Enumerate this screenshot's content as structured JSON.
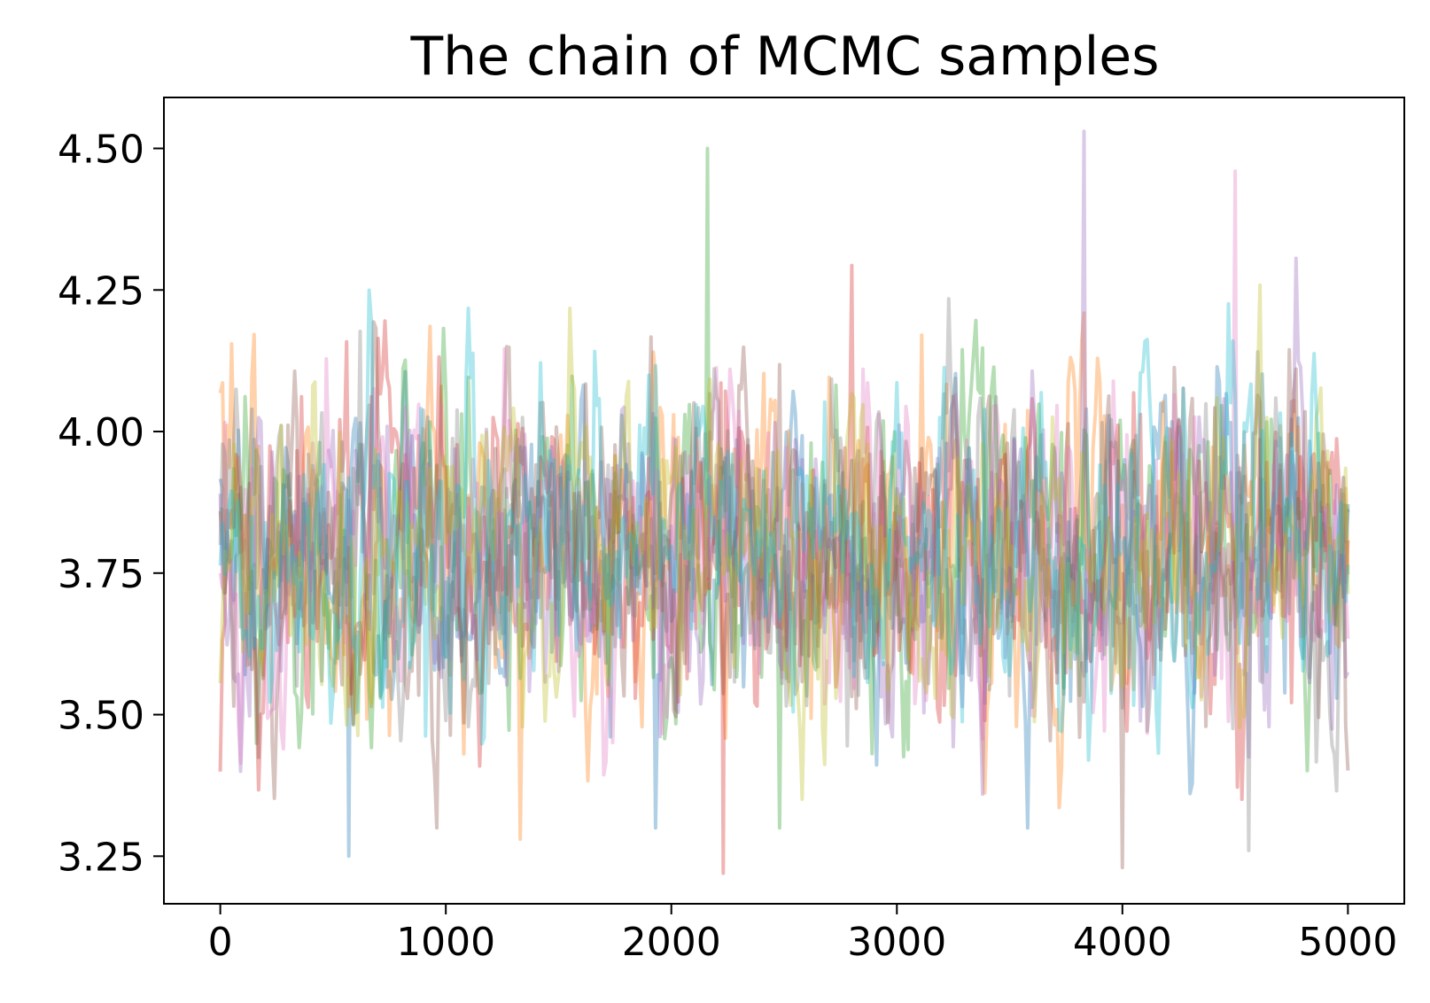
{
  "chart_data": {
    "type": "line",
    "title": "The chain of MCMC samples",
    "xlabel": "",
    "ylabel": "",
    "xlim": [
      -250,
      5250
    ],
    "ylim": [
      3.166,
      4.59
    ],
    "xticks": [
      0,
      1000,
      2000,
      3000,
      4000,
      5000
    ],
    "xtick_labels": [
      "0",
      "1000",
      "2000",
      "3000",
      "4000",
      "5000"
    ],
    "yticks": [
      3.25,
      3.5,
      3.75,
      4.0,
      4.25,
      4.5
    ],
    "ytick_labels": [
      "3.25",
      "3.50",
      "3.75",
      "4.00",
      "4.25",
      "4.50"
    ],
    "grid": false,
    "legend": "none",
    "n_samples": 5000,
    "chain_mean": 3.79,
    "chain_std": 0.14,
    "chain_min": 3.22,
    "chain_max": 4.53,
    "series_opacity": 0.35,
    "series_colors": [
      "#1f77b4",
      "#ff7f0e",
      "#2ca02c",
      "#d62728",
      "#9467bd",
      "#8c564b",
      "#e377c2",
      "#7f7f7f",
      "#bcbd22",
      "#17becf"
    ],
    "visible_extremes": [
      {
        "x": 570,
        "y": 3.25
      },
      {
        "x": 1330,
        "y": 3.28
      },
      {
        "x": 2160,
        "y": 4.5
      },
      {
        "x": 2230,
        "y": 3.22
      },
      {
        "x": 3830,
        "y": 4.53
      },
      {
        "x": 4000,
        "y": 3.23
      },
      {
        "x": 4500,
        "y": 4.46
      },
      {
        "x": 4560,
        "y": 3.26
      }
    ]
  }
}
